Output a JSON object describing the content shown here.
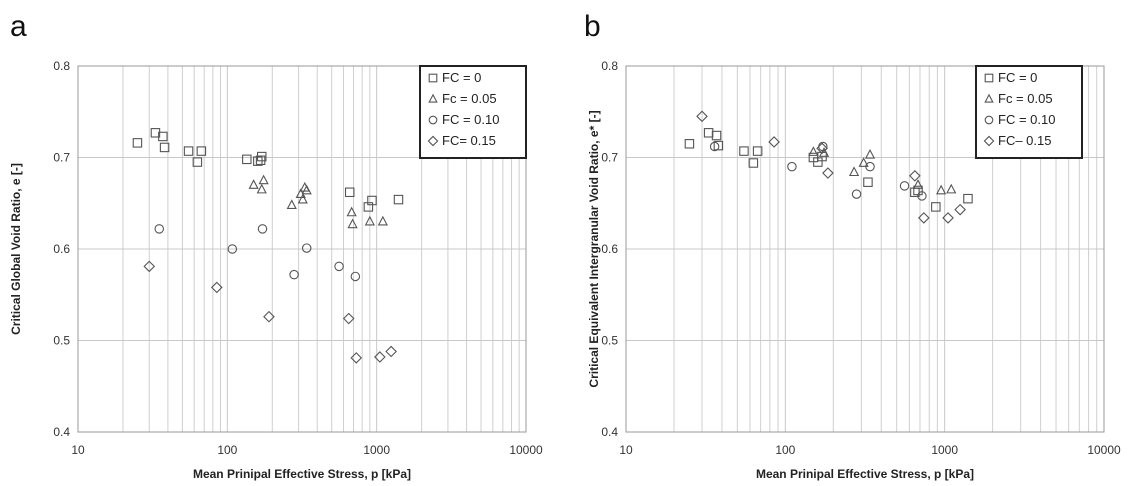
{
  "chart_data": [
    {
      "panel": "a",
      "type": "scatter",
      "xscale": "log",
      "xlim": [
        10,
        10000
      ],
      "ylim": [
        0.4,
        0.8
      ],
      "xticks": [
        "10",
        "100",
        "1000",
        "10000"
      ],
      "yticks": [
        "0.4",
        "0.5",
        "0.6",
        "0.7",
        "0.8"
      ],
      "xlabel": "Mean Prinipal Effective Stress, p [kPa]",
      "ylabel": "Critical Global Void Ratio, e [-]",
      "grid": true,
      "legend_position": "top-right",
      "series": [
        {
          "name": "FC = 0",
          "marker": "square",
          "points": [
            [
              25,
              0.716
            ],
            [
              33,
              0.727
            ],
            [
              37,
              0.723
            ],
            [
              38,
              0.711
            ],
            [
              55,
              0.707
            ],
            [
              63,
              0.695
            ],
            [
              67,
              0.707
            ],
            [
              135,
              0.698
            ],
            [
              160,
              0.696
            ],
            [
              167,
              0.697
            ],
            [
              170,
              0.701
            ],
            [
              660,
              0.662
            ],
            [
              880,
              0.646
            ],
            [
              930,
              0.653
            ],
            [
              1400,
              0.654
            ]
          ]
        },
        {
          "name": "Fc = 0.05",
          "marker": "triangle",
          "points": [
            [
              150,
              0.67
            ],
            [
              170,
              0.665
            ],
            [
              175,
              0.675
            ],
            [
              270,
              0.648
            ],
            [
              310,
              0.66
            ],
            [
              320,
              0.654
            ],
            [
              330,
              0.667
            ],
            [
              340,
              0.664
            ],
            [
              680,
              0.64
            ],
            [
              690,
              0.627
            ],
            [
              900,
              0.63
            ],
            [
              1100,
              0.63
            ]
          ]
        },
        {
          "name": "FC = 0.10",
          "marker": "circle",
          "points": [
            [
              35,
              0.622
            ],
            [
              108,
              0.6
            ],
            [
              172,
              0.622
            ],
            [
              280,
              0.572
            ],
            [
              340,
              0.601
            ],
            [
              560,
              0.581
            ],
            [
              720,
              0.57
            ]
          ]
        },
        {
          "name": "FC= 0.15",
          "marker": "diamond",
          "points": [
            [
              30,
              0.581
            ],
            [
              85,
              0.558
            ],
            [
              190,
              0.526
            ],
            [
              650,
              0.524
            ],
            [
              730,
              0.481
            ],
            [
              1050,
              0.482
            ],
            [
              1250,
              0.488
            ]
          ]
        }
      ]
    },
    {
      "panel": "b",
      "type": "scatter",
      "xscale": "log",
      "xlim": [
        10,
        10000
      ],
      "ylim": [
        0.4,
        0.8
      ],
      "xticks": [
        "10",
        "100",
        "1000",
        "10000"
      ],
      "yticks": [
        "0.4",
        "0.5",
        "0.6",
        "0.7",
        "0.8"
      ],
      "xlabel": "Mean Prinipal Effective Stress, p [kPa]",
      "ylabel": "Critical Equivalent Intergranular Void Ratio, e* [-]",
      "grid": true,
      "legend_position": "top-right",
      "series": [
        {
          "name": "FC = 0",
          "marker": "square",
          "points": [
            [
              25,
              0.715
            ],
            [
              33,
              0.727
            ],
            [
              37,
              0.724
            ],
            [
              38,
              0.713
            ],
            [
              55,
              0.707
            ],
            [
              63,
              0.694
            ],
            [
              67,
              0.707
            ],
            [
              150,
              0.7
            ],
            [
              160,
              0.695
            ],
            [
              170,
              0.701
            ],
            [
              330,
              0.673
            ],
            [
              650,
              0.662
            ],
            [
              680,
              0.664
            ],
            [
              880,
              0.646
            ],
            [
              1400,
              0.655
            ]
          ]
        },
        {
          "name": "Fc = 0.05",
          "marker": "triangle",
          "points": [
            [
              150,
              0.706
            ],
            [
              175,
              0.705
            ],
            [
              270,
              0.684
            ],
            [
              310,
              0.694
            ],
            [
              340,
              0.703
            ],
            [
              680,
              0.67
            ],
            [
              950,
              0.664
            ],
            [
              1100,
              0.665
            ]
          ]
        },
        {
          "name": "FC = 0.10",
          "marker": "circle",
          "points": [
            [
              36,
              0.712
            ],
            [
              110,
              0.69
            ],
            [
              172,
              0.712
            ],
            [
              280,
              0.66
            ],
            [
              340,
              0.69
            ],
            [
              560,
              0.669
            ],
            [
              720,
              0.658
            ]
          ]
        },
        {
          "name": "FC– 0.15",
          "marker": "diamond",
          "points": [
            [
              30,
              0.745
            ],
            [
              85,
              0.717
            ],
            [
              170,
              0.71
            ],
            [
              185,
              0.683
            ],
            [
              650,
              0.68
            ],
            [
              740,
              0.634
            ],
            [
              1050,
              0.634
            ],
            [
              1250,
              0.643
            ]
          ]
        }
      ]
    }
  ]
}
